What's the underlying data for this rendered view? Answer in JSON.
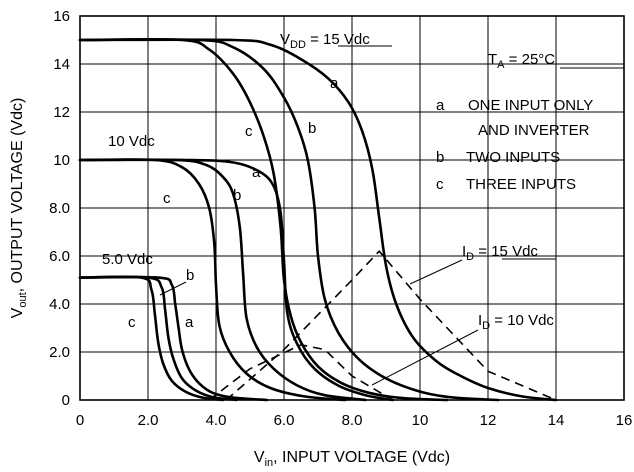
{
  "chart_data": {
    "type": "line",
    "xlabel": "V_in, INPUT VOLTAGE (Vdc)",
    "ylabel": "V_out, OUTPUT VOLTAGE (Vdc)",
    "xlim": [
      0,
      16
    ],
    "ylim": [
      0,
      16
    ],
    "xticks": [
      0,
      2,
      4,
      6,
      8,
      10,
      12,
      14,
      16
    ],
    "yticks": [
      0,
      2,
      4,
      6,
      8,
      10,
      12,
      14,
      16
    ],
    "xtick_labels": [
      "0",
      "2.0",
      "4.0",
      "6.0",
      "8.0",
      "10",
      "12",
      "14",
      "16"
    ],
    "ytick_labels": [
      "0",
      "2.0",
      "4.0",
      "6.0",
      "8.0",
      "10",
      "12",
      "14",
      "16"
    ],
    "grid": true,
    "annotations": {
      "temp_main": "T",
      "temp_sub": "A",
      "temp_rest": " = 25°C",
      "vdd15_main": "V",
      "vdd15_sub": "DD",
      "vdd15_rest": " = 15 Vdc",
      "vdd10": "10 Vdc",
      "vdd5": "5.0 Vdc",
      "id15_main": "I",
      "id15_sub": "D",
      "id15_rest": " = 15 Vdc",
      "id10_main": "I",
      "id10_sub": "D",
      "id10_rest": " = 10 Vdc"
    },
    "legend": [
      {
        "key": "a",
        "text": "ONE INPUT ONLY"
      },
      {
        "key": "",
        "text": "AND INVERTER"
      },
      {
        "key": "b",
        "text": "TWO INPUTS"
      },
      {
        "key": "c",
        "text": "THREE INPUTS"
      }
    ],
    "series": [
      {
        "name": "a",
        "group": "15 Vdc",
        "style": "solid",
        "x": [
          0,
          4.5,
          5.6,
          6.5,
          7.3,
          7.9,
          8.3,
          8.6,
          8.8,
          9.0,
          9.3,
          9.8,
          10.5,
          11.2,
          12.0,
          13.0,
          14.0
        ],
        "y": [
          15,
          15,
          14.8,
          14.2,
          13.4,
          12.4,
          11.2,
          9.6,
          7.6,
          5.6,
          4.0,
          2.6,
          1.6,
          1.0,
          0.5,
          0.15,
          0
        ]
      },
      {
        "name": "b",
        "group": "15 Vdc",
        "style": "solid",
        "x": [
          0,
          3.5,
          4.5,
          5.4,
          6.0,
          6.4,
          6.7,
          6.9,
          7.0,
          7.2,
          7.6,
          8.2,
          9.0,
          10.0,
          11.0,
          12.3
        ],
        "y": [
          15,
          15,
          14.7,
          13.8,
          12.6,
          11.4,
          10.0,
          8.0,
          6.0,
          4.2,
          2.8,
          1.7,
          0.9,
          0.35,
          0.1,
          0
        ]
      },
      {
        "name": "c",
        "group": "15 Vdc",
        "style": "solid",
        "x": [
          0,
          3.0,
          3.8,
          4.5,
          5.0,
          5.4,
          5.7,
          5.9,
          6.0,
          6.2,
          6.5,
          7.0,
          7.7,
          8.5,
          9.5,
          10.8
        ],
        "y": [
          15,
          15,
          14.6,
          13.6,
          12.4,
          11.0,
          9.4,
          7.2,
          5.0,
          3.5,
          2.4,
          1.4,
          0.7,
          0.3,
          0.08,
          0
        ]
      },
      {
        "name": "a",
        "group": "10 Vdc",
        "style": "solid",
        "x": [
          0,
          3.2,
          4.5,
          5.3,
          5.7,
          5.9,
          6.0,
          6.1,
          6.4,
          6.9,
          7.6,
          8.4,
          9.2
        ],
        "y": [
          10,
          10,
          9.9,
          9.5,
          8.9,
          7.8,
          5.8,
          3.6,
          2.3,
          1.3,
          0.6,
          0.2,
          0
        ]
      },
      {
        "name": "b",
        "group": "10 Vdc",
        "style": "solid",
        "x": [
          0,
          2.8,
          3.7,
          4.2,
          4.5,
          4.7,
          4.8,
          4.9,
          5.2,
          5.7,
          6.4,
          7.2,
          8.4
        ],
        "y": [
          10,
          10,
          9.8,
          9.3,
          8.6,
          7.2,
          5.2,
          3.4,
          2.2,
          1.3,
          0.6,
          0.2,
          0
        ]
      },
      {
        "name": "c",
        "group": "10 Vdc",
        "style": "solid",
        "x": [
          0,
          2.2,
          3.0,
          3.5,
          3.8,
          3.95,
          4.0,
          4.1,
          4.4,
          4.9,
          5.6,
          6.6,
          7.8
        ],
        "y": [
          10,
          10,
          9.7,
          9.0,
          8.0,
          6.5,
          4.8,
          3.1,
          2.0,
          1.1,
          0.5,
          0.15,
          0
        ]
      },
      {
        "name": "a",
        "group": "5.0 Vdc",
        "style": "solid",
        "x": [
          0,
          2.3,
          2.7,
          2.8,
          2.9,
          3.0,
          3.2,
          3.5,
          3.9,
          4.5,
          5.5
        ],
        "y": [
          5.1,
          5.1,
          4.8,
          4.0,
          3.0,
          2.1,
          1.3,
          0.7,
          0.3,
          0.1,
          0
        ]
      },
      {
        "name": "b",
        "group": "5.0 Vdc",
        "style": "solid",
        "x": [
          0,
          2.0,
          2.4,
          2.5,
          2.6,
          2.75,
          3.0,
          3.4,
          3.9,
          4.6
        ],
        "y": [
          5.1,
          5.1,
          4.7,
          3.8,
          2.6,
          1.7,
          0.9,
          0.4,
          0.12,
          0
        ]
      },
      {
        "name": "c",
        "group": "5.0 Vdc",
        "style": "solid",
        "x": [
          0,
          1.8,
          2.1,
          2.2,
          2.3,
          2.45,
          2.7,
          3.1,
          3.6,
          4.2
        ],
        "y": [
          5.1,
          5.1,
          4.6,
          3.6,
          2.4,
          1.5,
          0.8,
          0.35,
          0.1,
          0
        ]
      },
      {
        "name": "I_D = 15 Vdc",
        "group": "drain current",
        "style": "dashed",
        "x": [
          4.3,
          6.0,
          8.0,
          8.8,
          10.0,
          12.0,
          14.0
        ],
        "y": [
          0,
          2.1,
          5.0,
          6.2,
          4.2,
          1.2,
          0
        ]
      },
      {
        "name": "I_D = 10 Vdc",
        "group": "drain current",
        "style": "dashed",
        "x": [
          3.8,
          5.0,
          6.5,
          7.2,
          8.0,
          9.2
        ],
        "y": [
          0,
          1.3,
          2.3,
          2.1,
          1.0,
          0
        ]
      }
    ]
  }
}
